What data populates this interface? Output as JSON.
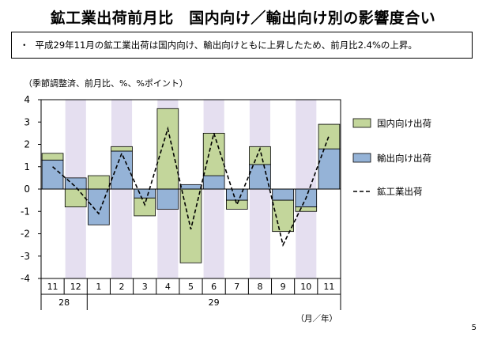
{
  "header": {
    "title": "鉱工業出荷前月比　国内向け／輸出向け別の影響度合い"
  },
  "summary": {
    "bullet": "・",
    "text": "平成29年11月の鉱工業出荷は国内向け、輸出向けともに上昇したため、前月比2.4%の上昇。"
  },
  "unit_note": "（季節調整済、前月比、%、%ポイント）",
  "page_number": "5",
  "chart_data": {
    "type": "bar",
    "stacked": true,
    "categories": [
      "11",
      "12",
      "1",
      "2",
      "3",
      "4",
      "5",
      "6",
      "7",
      "8",
      "9",
      "10",
      "11"
    ],
    "year_labels": [
      {
        "label": "28",
        "from": 0,
        "to": 1
      },
      {
        "label": "29",
        "from": 2,
        "to": 12
      }
    ],
    "shaded_categories": [
      1,
      3,
      5,
      7,
      9,
      11
    ],
    "series": [
      {
        "name": "輸出向け出荷",
        "kind": "bar",
        "color": "#95b3d7",
        "values": [
          1.3,
          0.5,
          -1.6,
          1.7,
          -0.4,
          -0.9,
          0.2,
          0.6,
          -0.5,
          1.1,
          -0.5,
          -0.8,
          1.8
        ]
      },
      {
        "name": "国内向け出荷",
        "kind": "bar",
        "color": "#c3d69b",
        "values": [
          0.3,
          -0.8,
          0.6,
          0.2,
          -0.8,
          3.6,
          -3.3,
          1.9,
          -0.4,
          0.8,
          -1.4,
          -0.2,
          1.1
        ]
      },
      {
        "name": "鉱工業出荷",
        "kind": "line",
        "color": "#000000",
        "dashed": true,
        "values": [
          1.0,
          0.1,
          -1.1,
          1.6,
          -0.7,
          2.7,
          -1.8,
          2.5,
          -0.7,
          1.8,
          -2.5,
          -0.4,
          2.4
        ]
      }
    ],
    "legend_order": [
      1,
      0,
      2
    ],
    "legend_position": "right",
    "ylim": [
      -4,
      4
    ],
    "yticks": [
      -4,
      -3,
      -2,
      -1,
      0,
      1,
      2,
      3,
      4
    ],
    "xlabel": "（月／年）",
    "ylabel": "",
    "grid": false,
    "colors": {
      "shade": "#e5dff0",
      "bar_stroke": "#000000"
    }
  }
}
